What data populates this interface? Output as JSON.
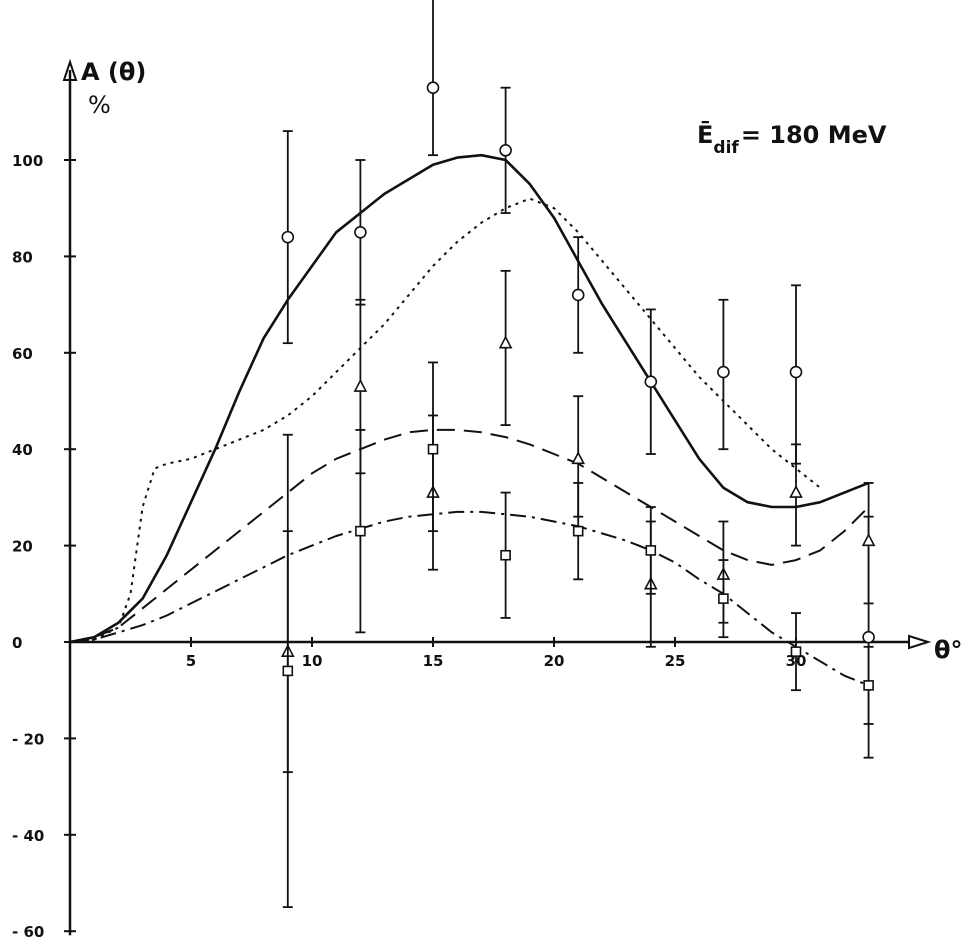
{
  "chart_data": {
    "type": "scatter",
    "ylabel": "A (θ)",
    "yunit": "%",
    "xlabel": "θ°",
    "annotation": {
      "main": "Ē",
      "sub": "dif",
      "rest": "= 180 MeV"
    },
    "xlim": [
      0,
      35
    ],
    "ylim": [
      -60,
      120
    ],
    "xticks": [
      5,
      10,
      15,
      20,
      25,
      30
    ],
    "yticks": [
      100,
      80,
      60,
      40,
      20,
      0,
      -20,
      -40,
      -60
    ],
    "ytick_labels": [
      "100",
      "80",
      "60",
      "40",
      "20",
      "0",
      "- 20",
      "- 40",
      "- 60"
    ],
    "grid": false,
    "curves": [
      {
        "style": "solid",
        "x": [
          0,
          1,
          2,
          3,
          4,
          5,
          6,
          7,
          8,
          9,
          10,
          11,
          12,
          13,
          14,
          15,
          16,
          17,
          18,
          19,
          20,
          21,
          22,
          23,
          24,
          25,
          26,
          27,
          28,
          29,
          30,
          31,
          32,
          33
        ],
        "y": [
          0,
          1,
          4,
          9,
          18,
          29,
          40,
          52,
          63,
          71,
          78,
          85,
          89,
          93,
          96,
          99,
          100.5,
          101,
          100,
          95,
          88,
          79,
          70,
          62,
          54,
          46,
          38,
          32,
          29,
          28,
          28,
          29,
          31,
          33
        ]
      },
      {
        "style": "dotted",
        "x": [
          0,
          1,
          2,
          2.5,
          3,
          3.5,
          4,
          5,
          6,
          7,
          8,
          9,
          10,
          11,
          12,
          13,
          14,
          15,
          16,
          17,
          18,
          19,
          20,
          21,
          22,
          23,
          24,
          25,
          26,
          27,
          28,
          29,
          30,
          31
        ],
        "y": [
          0,
          0.5,
          3,
          10,
          28,
          36,
          37,
          38,
          40,
          42,
          44,
          47,
          51,
          56,
          61,
          66,
          72,
          78,
          83,
          87,
          90,
          92,
          90,
          85,
          79,
          73,
          67,
          61,
          55,
          50,
          45,
          40,
          36,
          32
        ]
      },
      {
        "style": "dashed",
        "x": [
          0,
          1,
          2,
          3,
          4,
          5,
          6,
          7,
          8,
          9,
          10,
          11,
          12,
          13,
          14,
          15,
          16,
          17,
          18,
          19,
          20,
          21,
          22,
          23,
          24,
          25,
          26,
          27,
          28,
          29,
          30,
          31,
          32,
          33
        ],
        "y": [
          0,
          1,
          3,
          7,
          11,
          15,
          19,
          23,
          27,
          31,
          35,
          38,
          40,
          42,
          43.5,
          44,
          44,
          43.5,
          42.5,
          41,
          39,
          37,
          34,
          31,
          28,
          25,
          22,
          19,
          17,
          16,
          17,
          19,
          23,
          28
        ]
      },
      {
        "style": "dashdot",
        "x": [
          0,
          1,
          2,
          3,
          4,
          5,
          6,
          7,
          8,
          9,
          10,
          11,
          12,
          13,
          14,
          15,
          16,
          17,
          18,
          19,
          20,
          21,
          22,
          23,
          24,
          25,
          26,
          27,
          28,
          29,
          30,
          31,
          32,
          33
        ],
        "y": [
          0,
          0.5,
          2,
          3.5,
          5.5,
          8,
          10.5,
          13,
          15.5,
          18,
          20,
          22,
          23.5,
          25,
          26,
          26.5,
          27,
          27,
          26.5,
          26,
          25,
          24,
          22.5,
          21,
          19,
          16.5,
          13,
          10,
          6,
          2,
          -1,
          -4,
          -7,
          -9
        ]
      }
    ],
    "series": [
      {
        "marker": "circle",
        "points": [
          {
            "x": 9,
            "y": 84,
            "ylo": 62,
            "yhi": 106
          },
          {
            "x": 12,
            "y": 85,
            "ylo": 70,
            "yhi": 100
          },
          {
            "x": 15,
            "y": 115,
            "ylo": 101,
            "yhi": 135
          },
          {
            "x": 18,
            "y": 102,
            "ylo": 89,
            "yhi": 115
          },
          {
            "x": 21,
            "y": 72,
            "ylo": 60,
            "yhi": 84
          },
          {
            "x": 24,
            "y": 54,
            "ylo": 39,
            "yhi": 69
          },
          {
            "x": 27,
            "y": 56,
            "ylo": 40,
            "yhi": 71
          },
          {
            "x": 30,
            "y": 56,
            "ylo": 37,
            "yhi": 74
          },
          {
            "x": 33,
            "y": 1,
            "ylo": -24,
            "yhi": 26
          }
        ]
      },
      {
        "marker": "triangle",
        "points": [
          {
            "x": 9,
            "y": -2,
            "ylo": -27,
            "yhi": 23
          },
          {
            "x": 12,
            "y": 53,
            "ylo": 35,
            "yhi": 71
          },
          {
            "x": 15,
            "y": 31,
            "ylo": 15,
            "yhi": 47
          },
          {
            "x": 18,
            "y": 62,
            "ylo": 45,
            "yhi": 77
          },
          {
            "x": 21,
            "y": 38,
            "ylo": 26,
            "yhi": 51
          },
          {
            "x": 24,
            "y": 12,
            "ylo": -1,
            "yhi": 25
          },
          {
            "x": 27,
            "y": 14,
            "ylo": 4,
            "yhi": 25
          },
          {
            "x": 30,
            "y": 31,
            "ylo": 20,
            "yhi": 41
          },
          {
            "x": 33,
            "y": 21,
            "ylo": 8,
            "yhi": 33
          }
        ]
      },
      {
        "marker": "square",
        "points": [
          {
            "x": 9,
            "y": -6,
            "ylo": -55,
            "yhi": 43
          },
          {
            "x": 12,
            "y": 23,
            "ylo": 2,
            "yhi": 44
          },
          {
            "x": 15,
            "y": 40,
            "ylo": 23,
            "yhi": 58
          },
          {
            "x": 18,
            "y": 18,
            "ylo": 5,
            "yhi": 31
          },
          {
            "x": 21,
            "y": 23,
            "ylo": 13,
            "yhi": 33
          },
          {
            "x": 24,
            "y": 19,
            "ylo": 10,
            "yhi": 28
          },
          {
            "x": 27,
            "y": 9,
            "ylo": 1,
            "yhi": 17
          },
          {
            "x": 30,
            "y": -2,
            "ylo": -10,
            "yhi": 6
          },
          {
            "x": 33,
            "y": -9,
            "ylo": -17,
            "yhi": -1
          }
        ]
      }
    ]
  }
}
